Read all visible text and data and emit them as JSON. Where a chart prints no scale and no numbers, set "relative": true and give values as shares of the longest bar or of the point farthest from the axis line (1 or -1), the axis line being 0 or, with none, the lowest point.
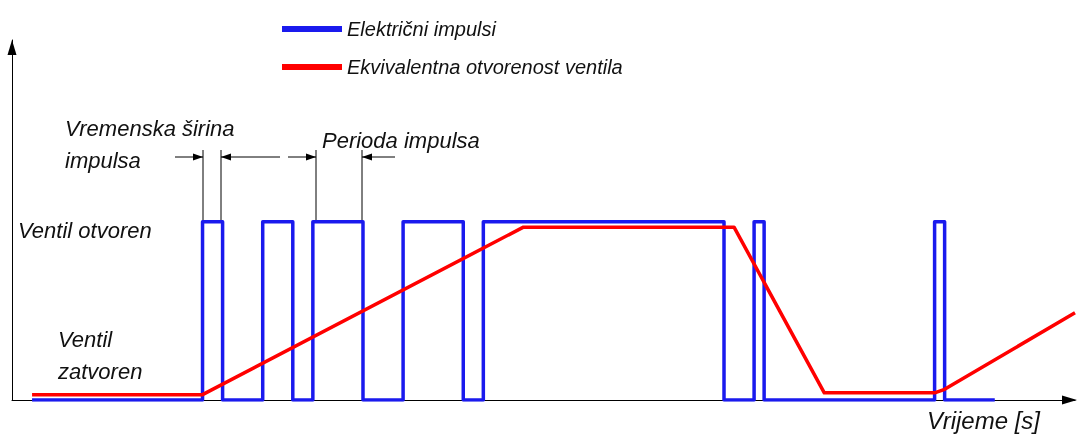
{
  "chart_data": {
    "type": "line",
    "relative": true,
    "xlabel": "Vrijeme [s]",
    "grid": false,
    "legend": "top",
    "marker": "none",
    "line_style": "solid",
    "annotations": [
      "Vremenska širina impulsa",
      "Perioda impulsa",
      "Ventil otvoren",
      "Ventil zatvoren"
    ],
    "categories": [
      null,
      null,
      null,
      null,
      null,
      null,
      null,
      null,
      null,
      null,
      null,
      null,
      null,
      null,
      null,
      null,
      null,
      null,
      null,
      null,
      null,
      null,
      null,
      null,
      null,
      null,
      null,
      null,
      null,
      null,
      null,
      null,
      null,
      null,
      null,
      null,
      null,
      null,
      null,
      null,
      null,
      null,
      null,
      null,
      null,
      null,
      null,
      null,
      null,
      null,
      null,
      null,
      null,
      null,
      null,
      null,
      null,
      null,
      null,
      null,
      null,
      null,
      null,
      null,
      null,
      null,
      null,
      null,
      null,
      null,
      null,
      null,
      null,
      null,
      null,
      null,
      null,
      null,
      null,
      null,
      null,
      null,
      null,
      null,
      null,
      null,
      null,
      null,
      null,
      null,
      null,
      null,
      null,
      null,
      null,
      null,
      null,
      null,
      null,
      null,
      null,
      null,
      null,
      null,
      null,
      null,
      null
    ],
    "series": [
      {
        "name": "Električni impulsi",
        "type": "step",
        "color": "#1a1aee",
        "values": [
          null,
          null,
          0,
          0,
          0,
          0,
          0,
          0,
          0,
          0,
          0,
          0,
          0,
          0,
          0,
          0,
          0,
          0,
          0,
          1,
          1,
          0,
          0,
          0,
          0,
          1,
          1,
          1,
          0,
          0,
          1,
          1,
          1,
          1,
          1,
          0,
          0,
          0,
          0,
          1,
          1,
          1,
          1,
          1,
          1,
          0,
          0,
          1,
          1,
          1,
          1,
          1,
          1,
          1,
          1,
          1,
          1,
          1,
          1,
          1,
          1,
          1,
          1,
          1,
          1,
          1,
          1,
          1,
          1,
          1,
          1,
          0,
          0,
          0,
          1,
          0,
          0,
          0,
          0,
          0,
          0,
          0,
          0,
          0,
          0,
          0,
          0,
          0,
          0,
          0,
          0,
          0,
          1,
          0,
          0,
          0,
          0,
          0,
          0,
          null,
          null,
          null,
          null,
          null,
          null,
          null,
          null
        ]
      },
      {
        "name": "Ekvivalentna otvorenost ventila",
        "color": "#ff0000",
        "values": [
          null,
          null,
          0.03,
          null,
          null,
          null,
          null,
          null,
          null,
          null,
          null,
          null,
          null,
          null,
          null,
          null,
          null,
          null,
          null,
          0.03,
          null,
          null,
          null,
          null,
          null,
          null,
          null,
          null,
          null,
          null,
          null,
          null,
          null,
          null,
          null,
          null,
          null,
          null,
          null,
          null,
          null,
          null,
          null,
          null,
          null,
          null,
          null,
          null,
          null,
          null,
          null,
          0.97,
          null,
          null,
          null,
          null,
          null,
          null,
          null,
          null,
          null,
          null,
          null,
          null,
          null,
          null,
          null,
          null,
          null,
          null,
          null,
          null,
          0.97,
          null,
          null,
          null,
          null,
          null,
          null,
          null,
          null,
          0.04,
          null,
          null,
          null,
          null,
          null,
          null,
          null,
          null,
          null,
          null,
          0.04,
          0.06,
          null,
          null,
          null,
          null,
          null,
          null,
          null,
          null,
          null,
          null,
          null,
          null,
          0.49
        ]
      }
    ]
  }
}
